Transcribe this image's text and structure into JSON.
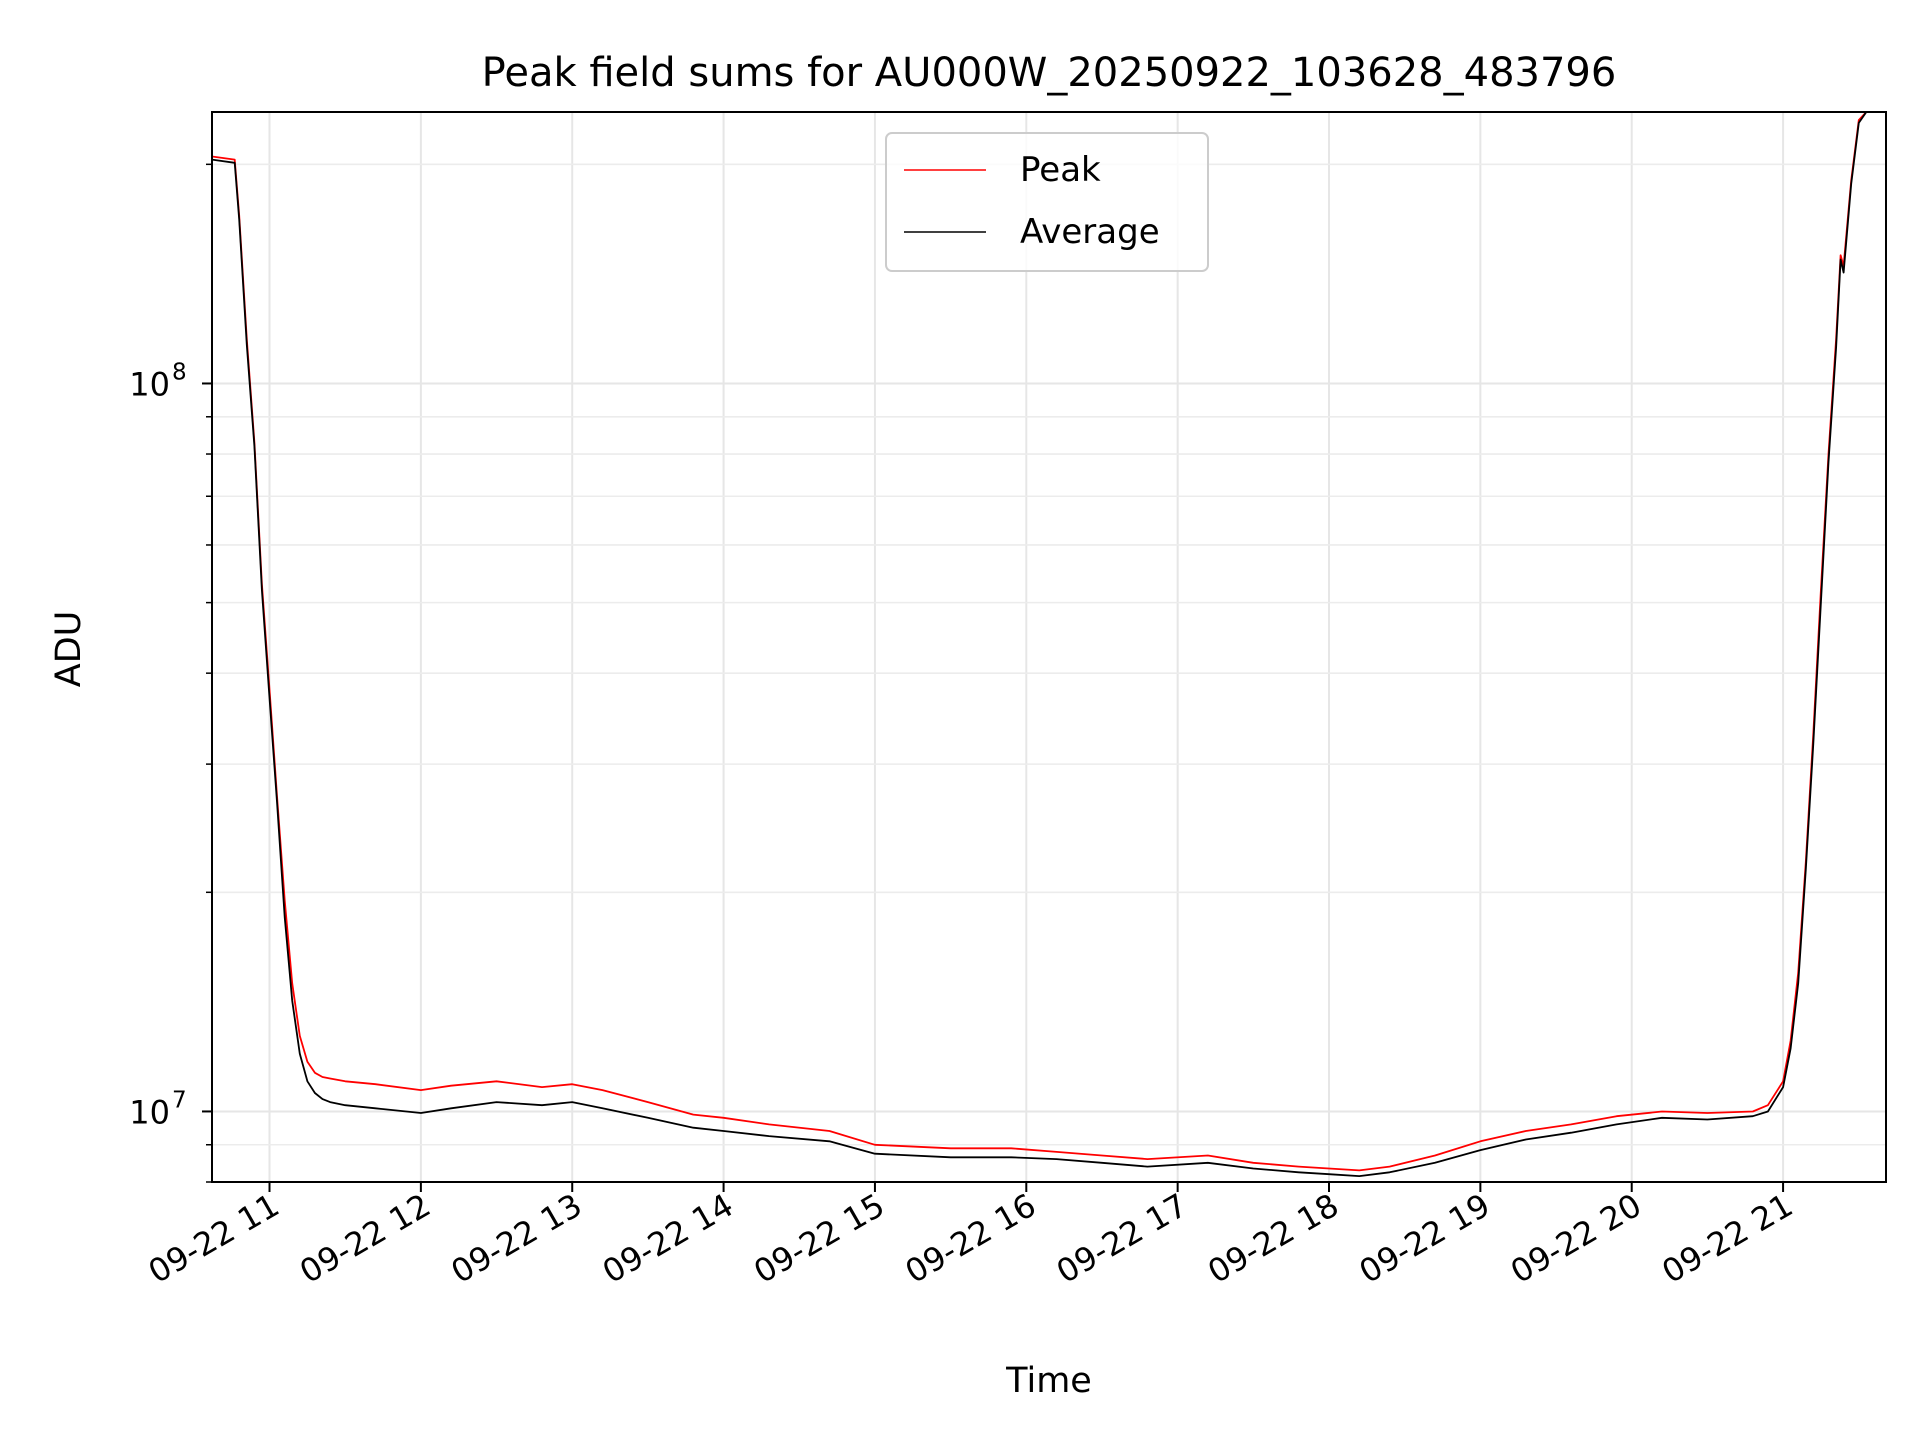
{
  "chart_data": {
    "type": "line",
    "title": "Peak field sums for AU000W_20250922_103628_483796",
    "xlabel": "Time",
    "ylabel": "ADU",
    "yscale": "log",
    "ylim": [
      8000000,
      236000000
    ],
    "xlim_hours": [
      10.62,
      21.68
    ],
    "grid": true,
    "legend_position": "upper center",
    "x_tick_hours": [
      11,
      12,
      13,
      14,
      15,
      16,
      17,
      18,
      19,
      20,
      21
    ],
    "x_tick_labels": [
      "09-22 11",
      "09-22 12",
      "09-22 13",
      "09-22 14",
      "09-22 15",
      "09-22 16",
      "09-22 17",
      "09-22 18",
      "09-22 19",
      "09-22 20",
      "09-22 21"
    ],
    "y_major_ticks": [
      10000000,
      100000000
    ],
    "y_tick_labels": [
      {
        "base": "10",
        "exp": "7"
      },
      {
        "base": "10",
        "exp": "8"
      }
    ],
    "series": [
      {
        "name": "Peak",
        "color": "#ff0000",
        "hours": [
          10.62,
          10.77,
          10.8,
          10.85,
          10.9,
          10.95,
          11.0,
          11.05,
          11.1,
          11.15,
          11.2,
          11.25,
          11.3,
          11.35,
          11.4,
          11.5,
          11.7,
          12.0,
          12.2,
          12.5,
          12.8,
          13.0,
          13.2,
          13.5,
          13.8,
          14.0,
          14.3,
          14.7,
          15.0,
          15.5,
          15.9,
          16.2,
          16.5,
          16.8,
          17.2,
          17.5,
          17.8,
          18.0,
          18.2,
          18.4,
          18.7,
          19.0,
          19.3,
          19.6,
          19.9,
          20.2,
          20.5,
          20.8,
          20.9,
          21.0,
          21.05,
          21.1,
          21.15,
          21.2,
          21.25,
          21.3,
          21.35,
          21.38,
          21.4,
          21.45,
          21.5,
          21.55,
          21.68
        ],
        "values": [
          205000000,
          203000000,
          170000000,
          115000000,
          83000000,
          53000000,
          38000000,
          27000000,
          19500000,
          15000000,
          12700000,
          11700000,
          11300000,
          11150000,
          11100000,
          11000000,
          10900000,
          10700000,
          10850000,
          11000000,
          10800000,
          10900000,
          10700000,
          10300000,
          9900000,
          9800000,
          9600000,
          9400000,
          9000000,
          8900000,
          8900000,
          8800000,
          8700000,
          8600000,
          8700000,
          8500000,
          8400000,
          8350000,
          8300000,
          8400000,
          8700000,
          9100000,
          9400000,
          9600000,
          9850000,
          10000000,
          9950000,
          10000000,
          10200000,
          11000000,
          12500000,
          15500000,
          22000000,
          33000000,
          52000000,
          80000000,
          115000000,
          150000000,
          145000000,
          190000000,
          230000000,
          236000000,
          236000000
        ]
      },
      {
        "name": "Average",
        "color": "#000000",
        "hours": [
          10.62,
          10.77,
          10.8,
          10.85,
          10.9,
          10.95,
          11.0,
          11.05,
          11.1,
          11.15,
          11.2,
          11.25,
          11.3,
          11.35,
          11.4,
          11.5,
          11.7,
          12.0,
          12.2,
          12.5,
          12.8,
          13.0,
          13.2,
          13.5,
          13.8,
          14.0,
          14.3,
          14.7,
          15.0,
          15.5,
          15.9,
          16.2,
          16.5,
          16.8,
          17.2,
          17.5,
          17.8,
          18.0,
          18.2,
          18.4,
          18.7,
          19.0,
          19.3,
          19.6,
          19.9,
          20.2,
          20.5,
          20.8,
          20.9,
          21.0,
          21.05,
          21.1,
          21.15,
          21.2,
          21.25,
          21.3,
          21.35,
          21.38,
          21.4,
          21.45,
          21.5,
          21.55,
          21.68
        ],
        "values": [
          203000000,
          201000000,
          168000000,
          113000000,
          82000000,
          52000000,
          37000000,
          26500000,
          18500000,
          14200000,
          12000000,
          11000000,
          10600000,
          10400000,
          10300000,
          10200000,
          10100000,
          9950000,
          10100000,
          10300000,
          10200000,
          10300000,
          10100000,
          9800000,
          9500000,
          9400000,
          9250000,
          9100000,
          8750000,
          8650000,
          8650000,
          8600000,
          8500000,
          8400000,
          8500000,
          8350000,
          8250000,
          8200000,
          8150000,
          8250000,
          8500000,
          8850000,
          9150000,
          9350000,
          9600000,
          9800000,
          9750000,
          9850000,
          10000000,
          10800000,
          12200000,
          15000000,
          21500000,
          32000000,
          50000000,
          78000000,
          112000000,
          148000000,
          142000000,
          188000000,
          228000000,
          236000000,
          236000000
        ]
      }
    ]
  }
}
